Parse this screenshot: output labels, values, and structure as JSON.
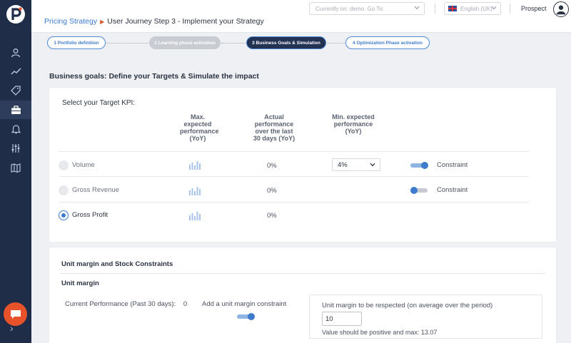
{
  "header": {
    "breadcrumb_link": "Pricing Strategy",
    "breadcrumb_current": "User Journey Step 3 - Implement your Strategy",
    "account_select": "Currently on: demo. Go To:",
    "language": "English (UK)",
    "user_name": "Prospect"
  },
  "sidebar": {
    "items": [
      "user-icon",
      "trend-icon",
      "tag-icon",
      "briefcase-icon",
      "bell-icon",
      "sliders-icon",
      "map-icon"
    ],
    "active_item": "briefcase-icon"
  },
  "steps": [
    {
      "label": "1 Portfolio definition",
      "state": "done"
    },
    {
      "label": "2 Learning phase activation",
      "state": "disabled"
    },
    {
      "label": "3 Business Goals & Simulation",
      "state": "active"
    },
    {
      "label": "4 Optimization Phase activation",
      "state": "todo"
    }
  ],
  "business_goals": {
    "title": "Business goals: Define your Targets & Simulate the impact",
    "select_label": "Select your Target KPI:",
    "col_max": "Max. expected performance (YoY)",
    "col_actual": "Actual performance over the last 30 days (YoY)",
    "col_min": "Min. expected performance (YoY)",
    "rows": [
      {
        "label": "Volume",
        "selected": false,
        "actual": "0%",
        "min": "4%",
        "constraint_on": true,
        "constraint_label": "Constraint"
      },
      {
        "label": "Gross Revenue",
        "selected": false,
        "actual": "0%",
        "constraint_on": false,
        "constraint_label": "Constraint"
      },
      {
        "label": "Gross Profit",
        "selected": true,
        "actual": "0%"
      }
    ]
  },
  "unit_margin": {
    "title": "Unit margin and Stock Constraints",
    "subtitle": "Unit margin",
    "current_label": "Current Performance (Past 30 days):",
    "current_value": "0",
    "add_label": "Add a unit margin constraint",
    "toggle_on": true,
    "respect_label": "Unit margin to be respected (on average over the period)",
    "input_value": "10",
    "hint": "Value should be positive and max: 13.07"
  },
  "colors": {
    "sidebar": "#1f2d49",
    "accent": "#3e7bcd",
    "brand": "#e8522b"
  }
}
